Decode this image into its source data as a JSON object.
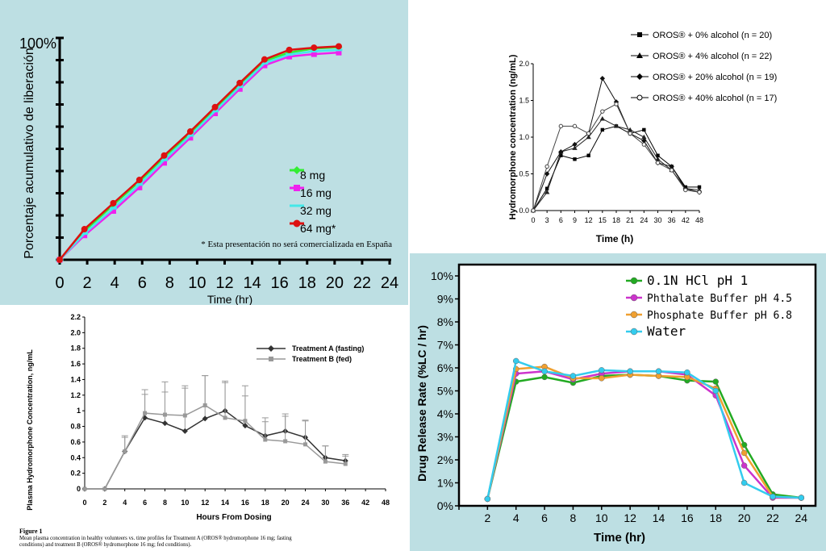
{
  "chart_data": [
    {
      "type": "line",
      "ylabel": "Porcentaje acumulativo de liberación",
      "xlabel": "Time (hr)",
      "y_top_label": "100%",
      "footnote": "* Esta presentación no será comercializada en España",
      "x_ticks": [
        0,
        2,
        4,
        6,
        8,
        10,
        12,
        14,
        16,
        18,
        20,
        22,
        24
      ],
      "xlim": [
        0,
        24
      ],
      "ylim": [
        0,
        100
      ],
      "legend_position": "center-right",
      "x": [
        0,
        1.8,
        3.9,
        5.8,
        7.6,
        9.5,
        11.3,
        13.1,
        14.9,
        16.7,
        18.5,
        20.3
      ],
      "series": [
        {
          "name": "8 mg",
          "color": "#33ee33",
          "marker": "diamond",
          "values": [
            0,
            13.0,
            24.7,
            35.3,
            46.3,
            57.0,
            68.0,
            79.0,
            89.6,
            93.4,
            95.2,
            95.8
          ]
        },
        {
          "name": "16 mg",
          "color": "#ee22ee",
          "marker": "square",
          "values": [
            0,
            11.0,
            22.0,
            32.6,
            43.7,
            55.0,
            66.0,
            77.0,
            87.6,
            91.6,
            92.7,
            93.4
          ]
        },
        {
          "name": "32 mg",
          "color": "#44e8e8",
          "marker": "line",
          "values": [
            0,
            11.8,
            23.2,
            33.9,
            45.0,
            56.0,
            67.0,
            78.0,
            88.6,
            92.5,
            94.0,
            94.6
          ]
        },
        {
          "name": "64 mg*",
          "color": "#dd1111",
          "marker": "circle",
          "values": [
            0,
            13.8,
            25.5,
            36.0,
            47.0,
            57.8,
            68.8,
            79.7,
            90.3,
            94.6,
            95.6,
            96.2
          ]
        }
      ]
    },
    {
      "type": "line",
      "ylabel": "Hydromorphone concentration (ng/mL)",
      "xlabel": "Time (h)",
      "x_ticks": [
        0,
        3,
        6,
        9,
        12,
        15,
        18,
        21,
        24,
        30,
        36,
        42,
        48
      ],
      "y_ticks": [
        "0.0",
        "0.5",
        "1.0",
        "1.5",
        "2.0"
      ],
      "ylim": [
        0,
        2.0
      ],
      "legend_position": "top-right",
      "series": [
        {
          "name": "OROS® + 0% alcohol (n = 20)",
          "marker": "square",
          "values": [
            0,
            0.3,
            0.75,
            0.7,
            0.75,
            1.1,
            1.15,
            1.05,
            1.1,
            0.75,
            0.6,
            0.32,
            0.32
          ]
        },
        {
          "name": "OROS® + 4% alcohol (n = 22)",
          "marker": "triangle",
          "values": [
            0,
            0.25,
            0.8,
            0.85,
            1.0,
            1.25,
            1.15,
            1.1,
            1.0,
            0.7,
            0.55,
            0.3,
            0.28
          ]
        },
        {
          "name": "OROS® + 20% alcohol (n = 19)",
          "marker": "diamond",
          "values": [
            0,
            0.5,
            0.8,
            0.9,
            1.05,
            1.8,
            1.48,
            1.05,
            0.95,
            0.65,
            0.6,
            0.3,
            0.25
          ]
        },
        {
          "name": "OROS® + 40% alcohol (n = 17)",
          "marker": "open-circle",
          "values": [
            0,
            0.6,
            1.15,
            1.15,
            1.05,
            1.35,
            1.45,
            1.05,
            0.9,
            0.65,
            0.55,
            0.28,
            0.25
          ]
        }
      ]
    },
    {
      "type": "line",
      "ylabel": "Plasma Hydromorphone Concentration, ng/mL",
      "xlabel": "Hours From Dosing",
      "x_ticks": [
        0,
        2,
        4,
        6,
        8,
        10,
        12,
        14,
        16,
        18,
        20,
        24,
        30,
        36,
        42,
        48
      ],
      "y_ticks": [
        "0",
        "0.2",
        "0.4",
        "0.6",
        "0.8",
        "1",
        "1.2",
        "1.4",
        "1.6",
        "1.8",
        "2.0",
        "2.2"
      ],
      "ylim": [
        0,
        2.2
      ],
      "legend_position": "top-right",
      "caption_title": "Figure 1",
      "caption_line1": "Mean plasma concentration in healthy volunteers vs. time profiles for Treatment A (OROS® hydromorphone 16 mg; fasting",
      "caption_line2": "conditions) and treatment B (OROS® hydromorphone 16 mg; fed conditions).",
      "series": [
        {
          "name": "Treatment A (fasting)",
          "color": "#333333",
          "marker": "diamond",
          "values": [
            0,
            0,
            0.48,
            0.91,
            0.84,
            0.74,
            0.9,
            1.0,
            0.81,
            0.68,
            0.74,
            0.66,
            0.4,
            0.36
          ],
          "errors": [
            0,
            0,
            0.18,
            0.3,
            0.4,
            0.55,
            0.55,
            0.38,
            0.38,
            0.18,
            0.22,
            0.22,
            0.15,
            0.08
          ]
        },
        {
          "name": "Treatment B (fed)",
          "color": "#999999",
          "marker": "square",
          "values": [
            0,
            0,
            0.48,
            0.97,
            0.95,
            0.94,
            1.07,
            0.91,
            0.87,
            0.63,
            0.61,
            0.57,
            0.35,
            0.32
          ],
          "errors": [
            0,
            0,
            0.2,
            0.3,
            0.42,
            0.38,
            0.38,
            0.45,
            0.45,
            0.28,
            0.32,
            0.3,
            0.2,
            0.1
          ]
        }
      ]
    },
    {
      "type": "line",
      "ylabel": "Drug Release Rate  (%LC / hr)",
      "xlabel": "Time (hr)",
      "x": [
        2,
        4,
        6,
        8,
        10,
        12,
        14,
        16,
        18,
        20,
        22,
        24
      ],
      "y_ticks": [
        "0%",
        "1%",
        "2%",
        "3%",
        "4%",
        "5%",
        "6%",
        "7%",
        "8%",
        "9%",
        "10%"
      ],
      "ylim": [
        0,
        10
      ],
      "legend_position": "top-right",
      "series": [
        {
          "name": "0.1N HCl pH 1",
          "color": "#22aa22",
          "values": [
            0.3,
            5.4,
            5.6,
            5.35,
            5.65,
            5.7,
            5.65,
            5.45,
            5.4,
            2.65,
            0.5,
            0.35
          ]
        },
        {
          "name": "Phthalate Buffer pH 4.5",
          "color": "#cc33cc",
          "values": [
            0.3,
            5.75,
            5.85,
            5.5,
            5.75,
            5.85,
            5.85,
            5.7,
            4.8,
            1.75,
            0.35,
            0.35
          ]
        },
        {
          "name": "Phosphate Buffer pH 6.8",
          "color": "#f0a030",
          "values": [
            0.3,
            5.95,
            6.05,
            5.55,
            5.55,
            5.7,
            5.65,
            5.6,
            5.1,
            2.3,
            0.4,
            0.35
          ]
        },
        {
          "name": "Water",
          "color": "#33ccee",
          "values": [
            0.3,
            6.3,
            5.85,
            5.65,
            5.9,
            5.85,
            5.85,
            5.8,
            5.0,
            1.0,
            0.4,
            0.35
          ]
        }
      ]
    }
  ]
}
